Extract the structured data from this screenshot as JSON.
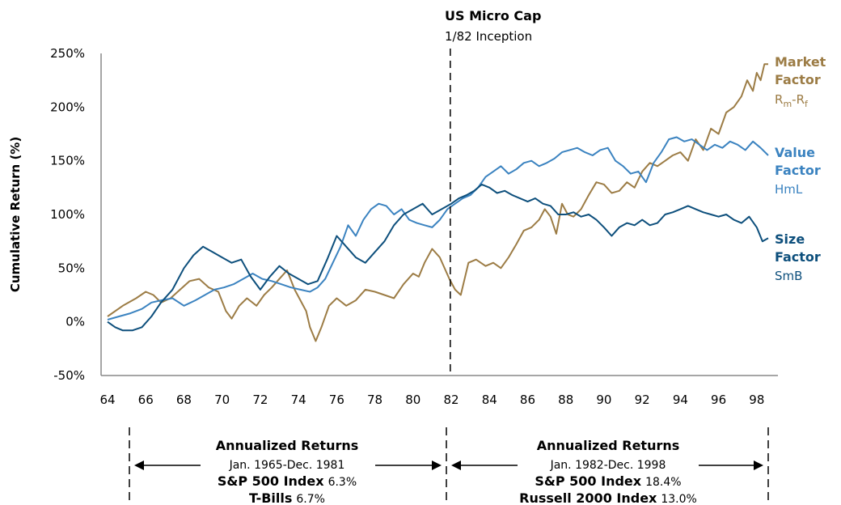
{
  "chart_data": {
    "type": "line",
    "ylabel": "Cumulative Return (%)",
    "ylim": [
      -50,
      250
    ],
    "yticks": [
      "250%",
      "200%",
      "150%",
      "100%",
      "50%",
      "0%",
      "-50%"
    ],
    "ytick_values": [
      250,
      200,
      150,
      100,
      50,
      0,
      -50
    ],
    "xlim": [
      64,
      98.6
    ],
    "xticks": [
      "64",
      "66",
      "68",
      "70",
      "72",
      "74",
      "76",
      "78",
      "80",
      "82",
      "84",
      "86",
      "88",
      "90",
      "92",
      "94",
      "96",
      "98"
    ],
    "xtick_values": [
      64,
      66,
      68,
      70,
      72,
      74,
      76,
      78,
      80,
      82,
      84,
      86,
      88,
      90,
      92,
      94,
      96,
      98
    ],
    "grid": false,
    "event_line": {
      "x": 81.95,
      "title": "US Micro Cap",
      "subtitle": "1/82 Inception"
    },
    "series": [
      {
        "name": "Market Factor",
        "sub_a": "R",
        "sub_b": "m",
        "sub_c": "-R",
        "sub_d": "f",
        "color": "#9c7c45",
        "x": [
          64.0,
          64.8,
          65.5,
          66.0,
          66.4,
          66.8,
          67.3,
          67.8,
          68.3,
          68.8,
          69.3,
          69.8,
          70.2,
          70.5,
          70.9,
          71.3,
          71.8,
          72.2,
          72.6,
          73.0,
          73.4,
          73.8,
          74.1,
          74.4,
          74.6,
          74.9,
          75.2,
          75.6,
          76.0,
          76.5,
          77.0,
          77.5,
          78.0,
          78.5,
          79.0,
          79.5,
          80.0,
          80.3,
          80.6,
          81.0,
          81.4,
          81.9,
          82.2,
          82.5,
          82.9,
          83.3,
          83.8,
          84.2,
          84.6,
          85.0,
          85.4,
          85.8,
          86.2,
          86.6,
          86.9,
          87.2,
          87.5,
          87.8,
          88.1,
          88.4,
          88.8,
          89.2,
          89.6,
          90.0,
          90.4,
          90.8,
          91.2,
          91.6,
          92.0,
          92.4,
          92.8,
          93.2,
          93.6,
          94.0,
          94.4,
          94.8,
          95.2,
          95.6,
          96.0,
          96.4,
          96.8,
          97.2,
          97.5,
          97.8,
          98.0,
          98.2,
          98.4,
          98.6
        ],
        "y": [
          5,
          15,
          22,
          28,
          25,
          18,
          22,
          30,
          38,
          40,
          32,
          28,
          10,
          3,
          15,
          22,
          15,
          25,
          32,
          40,
          48,
          30,
          20,
          10,
          -5,
          -18,
          -5,
          15,
          22,
          15,
          20,
          30,
          28,
          25,
          22,
          35,
          45,
          42,
          55,
          68,
          60,
          40,
          30,
          25,
          55,
          58,
          52,
          55,
          50,
          60,
          72,
          85,
          88,
          95,
          105,
          98,
          82,
          110,
          100,
          98,
          105,
          118,
          130,
          128,
          120,
          122,
          130,
          125,
          140,
          148,
          145,
          150,
          155,
          158,
          150,
          170,
          160,
          180,
          175,
          195,
          200,
          210,
          225,
          215,
          232,
          225,
          240,
          240
        ]
      },
      {
        "name": "Value Factor",
        "sub_a": "HmL",
        "color": "#3b83c0",
        "x": [
          64.0,
          64.6,
          65.2,
          65.8,
          66.3,
          66.8,
          67.4,
          68.0,
          68.6,
          69.1,
          69.6,
          70.1,
          70.6,
          71.1,
          71.6,
          72.1,
          72.6,
          73.1,
          73.6,
          74.1,
          74.6,
          75.0,
          75.4,
          75.8,
          76.2,
          76.6,
          77.0,
          77.4,
          77.8,
          78.2,
          78.6,
          79.0,
          79.4,
          79.8,
          80.2,
          80.6,
          81.0,
          81.4,
          81.8,
          82.2,
          82.6,
          83.0,
          83.4,
          83.8,
          84.2,
          84.6,
          85.0,
          85.4,
          85.8,
          86.2,
          86.6,
          87.0,
          87.4,
          87.8,
          88.2,
          88.6,
          89.0,
          89.4,
          89.8,
          90.2,
          90.6,
          91.0,
          91.4,
          91.8,
          92.2,
          92.6,
          93.0,
          93.4,
          93.8,
          94.2,
          94.6,
          95.0,
          95.4,
          95.8,
          96.2,
          96.6,
          97.0,
          97.4,
          97.8,
          98.2,
          98.6
        ],
        "y": [
          2,
          5,
          8,
          12,
          18,
          20,
          22,
          15,
          20,
          25,
          30,
          32,
          35,
          40,
          45,
          40,
          38,
          35,
          32,
          30,
          28,
          32,
          40,
          55,
          70,
          90,
          80,
          95,
          105,
          110,
          108,
          100,
          105,
          95,
          92,
          90,
          88,
          95,
          105,
          110,
          115,
          118,
          125,
          135,
          140,
          145,
          138,
          142,
          148,
          150,
          145,
          148,
          152,
          158,
          160,
          162,
          158,
          155,
          160,
          162,
          150,
          145,
          138,
          140,
          130,
          148,
          158,
          170,
          172,
          168,
          170,
          165,
          160,
          165,
          162,
          168,
          165,
          160,
          168,
          162,
          155
        ]
      },
      {
        "name": "Size Factor",
        "sub_a": "SmB",
        "color": "#0d4f7c",
        "x": [
          64.0,
          64.4,
          64.8,
          65.3,
          65.8,
          66.3,
          66.8,
          67.4,
          68.0,
          68.5,
          69.0,
          69.5,
          70.0,
          70.5,
          71.0,
          71.5,
          72.0,
          72.5,
          73.0,
          73.5,
          74.0,
          74.5,
          75.0,
          75.5,
          76.0,
          76.5,
          77.0,
          77.5,
          78.0,
          78.5,
          79.0,
          79.5,
          80.0,
          80.5,
          81.0,
          81.5,
          82.0,
          82.4,
          82.8,
          83.2,
          83.6,
          84.0,
          84.4,
          84.8,
          85.2,
          85.6,
          86.0,
          86.4,
          86.8,
          87.2,
          87.6,
          88.0,
          88.4,
          88.8,
          89.2,
          89.6,
          90.0,
          90.4,
          90.8,
          91.2,
          91.6,
          92.0,
          92.4,
          92.8,
          93.2,
          93.6,
          94.0,
          94.4,
          94.8,
          95.2,
          95.6,
          96.0,
          96.4,
          96.8,
          97.2,
          97.6,
          98.0,
          98.3,
          98.6
        ],
        "y": [
          0,
          -5,
          -8,
          -8,
          -5,
          5,
          18,
          30,
          50,
          62,
          70,
          65,
          60,
          55,
          58,
          42,
          30,
          42,
          52,
          45,
          40,
          35,
          38,
          58,
          80,
          70,
          60,
          55,
          65,
          75,
          90,
          100,
          105,
          110,
          100,
          105,
          110,
          115,
          118,
          122,
          128,
          125,
          120,
          122,
          118,
          115,
          112,
          115,
          110,
          108,
          100,
          100,
          102,
          98,
          100,
          95,
          88,
          80,
          88,
          92,
          90,
          95,
          90,
          92,
          100,
          102,
          105,
          108,
          105,
          102,
          100,
          98,
          100,
          95,
          92,
          98,
          88,
          75,
          78
        ]
      }
    ]
  },
  "legend": {
    "market": {
      "l1": "Market",
      "l2": "Factor",
      "sub_a": "R",
      "sub_b": "m",
      "sub_c": "-R",
      "sub_d": "f"
    },
    "value": {
      "l1": "Value",
      "l2": "Factor",
      "sub": "HmL"
    },
    "size": {
      "l1": "Size",
      "l2": "Factor",
      "sub": "SmB"
    }
  },
  "left_box": {
    "title": "Annualized Returns",
    "period": "Jan. 1965-Dec. 1981",
    "row1_bold": "S&P 500 Index",
    "row1_val": "6.3%",
    "row2_bold": "T-Bills",
    "row2_val": "6.7%"
  },
  "right_box": {
    "title": "Annualized Returns",
    "period": "Jan. 1982-Dec. 1998",
    "row1_bold": "S&P 500 Index",
    "row1_val": "18.4%",
    "row2_bold": "Russell 2000 Index",
    "row2_val": "13.0%"
  }
}
